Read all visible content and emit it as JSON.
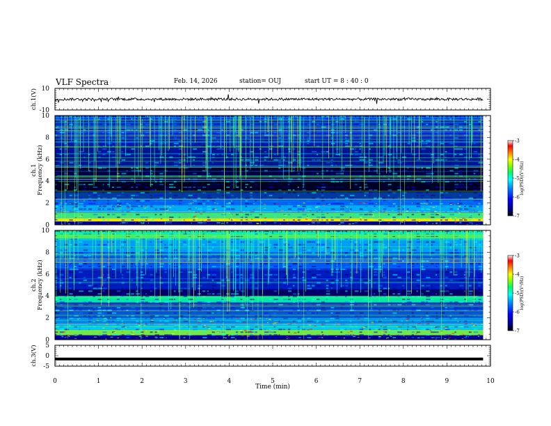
{
  "header": {
    "title": "VLF Spectra",
    "date": "Feb. 14, 2026",
    "station": "station= OUJ",
    "start_ut": "start  UT  =   8  : 40 : 0"
  },
  "colors": {
    "waveform": "#000000",
    "axis": "#000000",
    "colormap": [
      "#000000",
      "#000080",
      "#0000ff",
      "#0080ff",
      "#00ffff",
      "#00ff80",
      "#80ff00",
      "#ffff00",
      "#ff8000",
      "#ff0000",
      "#ffffff"
    ]
  },
  "chart_data": [
    {
      "type": "line",
      "panel": "ch1-waveform",
      "ylabel": "ch.1(V)",
      "ylim": [
        -10,
        10
      ],
      "yticks": [
        "10",
        "-10"
      ],
      "xlim": [
        0,
        10
      ],
      "data_end_min": 9.83,
      "baseline": 0
    },
    {
      "type": "heatmap",
      "panel": "ch1-spectrogram",
      "ylabel_line1": "ch.1",
      "ylabel_line2": "Frequency  (kHz)",
      "ylim": [
        0,
        10
      ],
      "yticks": [
        "0",
        "2",
        "4",
        "6",
        "8",
        "10"
      ],
      "colorbar": {
        "label": "log(PSD)(V²/Hz)",
        "range": [
          -7,
          -3
        ],
        "ticks": [
          "-3",
          "-4",
          "-5",
          "-6",
          "-7"
        ]
      }
    },
    {
      "type": "heatmap",
      "panel": "ch2-spectrogram",
      "ylabel_line1": "ch.2",
      "ylabel_line2": "Frequency  (kHz)",
      "ylim": [
        0,
        10
      ],
      "yticks": [
        "0",
        "2",
        "4",
        "6",
        "8",
        "10"
      ],
      "colorbar": {
        "label": "log(PSD)(V²/Hz)",
        "range": [
          -7,
          -3
        ],
        "ticks": [
          "-3",
          "-4",
          "-5",
          "-6",
          "-7"
        ]
      }
    },
    {
      "type": "line",
      "panel": "ch3-waveform",
      "ylabel": "ch.3(V)",
      "ylim": [
        -5,
        5
      ],
      "yticks": [
        "5",
        "0",
        "-5"
      ],
      "xlim": [
        0,
        10
      ],
      "data_end_min": 9.83,
      "baseline": -1.6
    }
  ],
  "x_axis": {
    "xlabel": "Time  (min)",
    "xlim": [
      0,
      10
    ],
    "xticks": [
      "0",
      "1",
      "2",
      "3",
      "4",
      "5",
      "6",
      "7",
      "8",
      "9",
      "10"
    ]
  }
}
